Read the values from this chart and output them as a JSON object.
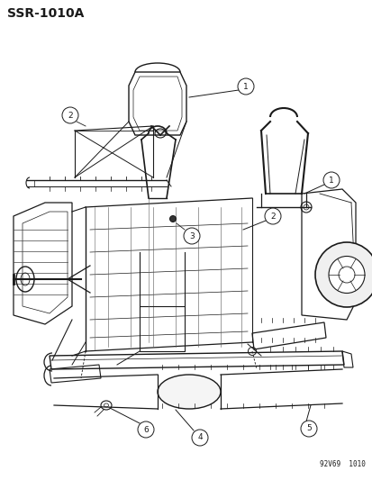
{
  "title": "SSR-1010A",
  "footer": "92V69  1010",
  "background_color": "#ffffff",
  "line_color": "#1a1a1a",
  "fig_width": 4.14,
  "fig_height": 5.33,
  "dpi": 100,
  "gray": "#888888",
  "lightgray": "#cccccc"
}
